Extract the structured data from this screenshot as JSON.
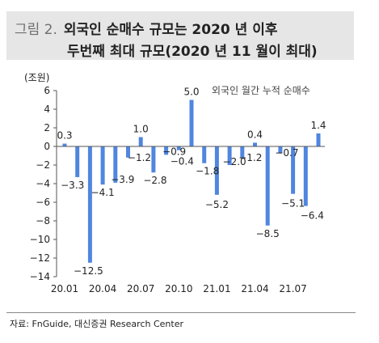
{
  "header": {
    "figure_label": "그림 2.",
    "title_line1": "외국인 순매수 규모는 2020 년 이후",
    "title_line2": "두번째 최대 규모(2020 년 11 월이 최대)"
  },
  "source": "자료: FnGuide, 대신증권 Research Center",
  "colors": {
    "bar": "#4f86e0",
    "axis": "#555555",
    "band": "#e6e6e6"
  },
  "chart_data": {
    "type": "bar",
    "unit_label": "(조원)",
    "legend": "외국인 월간 누적 순매수",
    "legend_position": "top-right",
    "grid": false,
    "ylim": [
      -14,
      6
    ],
    "yticks": [
      6,
      4,
      2,
      0,
      -2,
      -4,
      -6,
      -8,
      -10,
      -12,
      -14
    ],
    "yticklabels": [
      "6",
      "4",
      "2",
      "0",
      "−2",
      "−4",
      "−6",
      "−8",
      "−10",
      "−12",
      "−14"
    ],
    "xticklabels": [
      "20.01",
      "20.04",
      "20.07",
      "20.10",
      "21.01",
      "21.04",
      "21.07"
    ],
    "xtick_index": [
      0,
      3,
      6,
      9,
      12,
      15,
      18
    ],
    "categories": [
      "20.01",
      "20.02",
      "20.03",
      "20.04",
      "20.05",
      "20.06",
      "20.07",
      "20.08",
      "20.09",
      "20.10",
      "20.11",
      "20.12",
      "21.01",
      "21.02",
      "21.03",
      "21.04",
      "21.05",
      "21.06",
      "21.07",
      "21.08",
      "21.09"
    ],
    "values": [
      0.3,
      -3.3,
      -12.5,
      -4.1,
      -3.9,
      -1.2,
      1.0,
      -2.8,
      -0.9,
      -0.4,
      5.0,
      -1.8,
      -5.2,
      -2.0,
      -1.2,
      0.4,
      -8.5,
      -0.7,
      -5.1,
      -6.4,
      1.4
    ],
    "data_labels": [
      "0.3",
      "−3.3",
      "−12.5",
      "−4.1",
      "−3.9",
      "−1.2",
      "1.0",
      "−2.8",
      "−0.9",
      "−0.4",
      "5.0",
      "−1.8",
      "−5.2",
      "−2.0",
      "−1.2",
      "0.4",
      "−8.5",
      "−0.7",
      "−5.1",
      "−6.4",
      "1.4"
    ]
  }
}
